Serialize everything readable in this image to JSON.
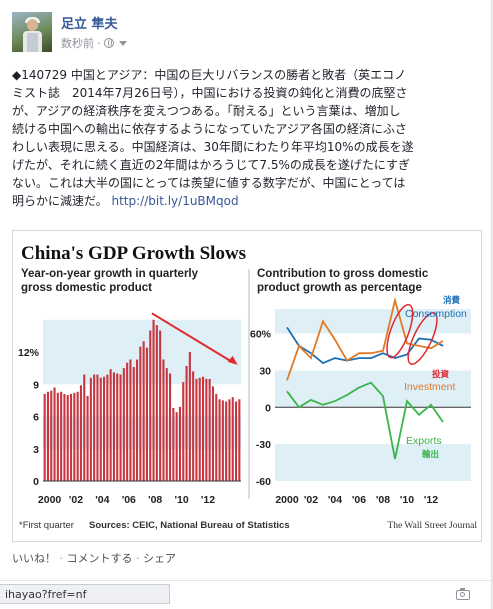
{
  "post": {
    "author": "足立 隼夫",
    "timestamp": "数秒前",
    "separator": "·",
    "privacy_icon": "globe-icon",
    "text_lines": [
      "◆140729 中国とアジア：中国の巨大リバランスの勝者と敗者（英エコノ",
      "ミスト誌　2014年7月26日号），中国における投資の鈍化と消費の底堅さ",
      "が、アジアの経済秩序を変えつつある。「耐える」という言葉は、増加し",
      "続ける中国への輸出に依存するようになっていたアジア各国の経済にふさ",
      "わしい表現に思える。中国経済は、30年間にわたり年平均10%の成長を遂",
      "げたが、それに続く直近の2年間はかろうじて7.5%の成長を遂げたにすぎ",
      "ない。これは大半の国にとっては羨望に値する数字だが、中国にとっては",
      "明らかに減速だ。"
    ],
    "link": "http://bit.ly/1uBMqod",
    "actions": [
      "いいね！",
      "コメントする",
      "シェア"
    ],
    "action_separator": " · "
  },
  "statusbar": {
    "url": "ihayao?fref=nf"
  },
  "chart_data": [
    {
      "type": "bar",
      "title": "China's GDP Growth Slows",
      "subtitle_lines": [
        "Year-on-year growth in quarterly",
        "gross domestic product"
      ],
      "ylim": [
        0,
        16
      ],
      "yticks": [
        "0",
        "3",
        "6",
        "9",
        "12%"
      ],
      "xticks": [
        "2000",
        "'02",
        "'04",
        "'06",
        "'08",
        "'10",
        "'12"
      ],
      "values": [
        8.1,
        8.3,
        8.4,
        8.7,
        8.2,
        8.3,
        8.1,
        8.0,
        8.1,
        8.2,
        8.3,
        8.9,
        9.9,
        7.9,
        9.6,
        9.9,
        9.9,
        9.6,
        9.7,
        9.9,
        10.4,
        10.1,
        10.0,
        9.9,
        10.5,
        11.0,
        11.3,
        10.6,
        11.3,
        12.5,
        13.0,
        12.4,
        14.0,
        15.0,
        14.5,
        14.0,
        11.3,
        10.5,
        10.0,
        6.8,
        6.4,
        6.9,
        9.2,
        10.7,
        12.0,
        10.2,
        9.5,
        9.6,
        9.7,
        9.5,
        9.5,
        8.8,
        8.1,
        7.6,
        7.5,
        7.4,
        7.6,
        7.8,
        7.4,
        7.6
      ]
    },
    {
      "type": "line",
      "subtitle_lines": [
        "Contribution to gross domestic",
        "product growth as percentage"
      ],
      "ylim": [
        -60,
        80
      ],
      "yticks": [
        "60%",
        "30",
        "0",
        "-30",
        "-60"
      ],
      "xticks": [
        "2000",
        "'02",
        "'04",
        "'06",
        "'08",
        "'10",
        "'12"
      ],
      "x": [
        2000,
        2001,
        2002,
        2003,
        2004,
        2005,
        2006,
        2007,
        2008,
        2009,
        2010,
        2011,
        2012,
        2013
      ],
      "series": [
        {
          "name": "Consumption",
          "label_local": "消費",
          "color": "#1f6fb5",
          "values": [
            65,
            50,
            44,
            36,
            40,
            38,
            40,
            40,
            44,
            40,
            43,
            56,
            55,
            50
          ]
        },
        {
          "name": "Investment",
          "label_local": "投資",
          "color": "#e07a26",
          "values": [
            22,
            50,
            40,
            70,
            55,
            38,
            44,
            44,
            46,
            87,
            52,
            50,
            48,
            54
          ]
        },
        {
          "name": "Exports",
          "label_local": "輸出",
          "color": "#39b54a",
          "values": [
            13,
            0,
            6,
            2,
            5,
            10,
            16,
            20,
            9,
            -42,
            5,
            -6,
            2,
            -12
          ]
        }
      ]
    }
  ],
  "chart_footer": {
    "note": "*First quarter",
    "sources": "Sources: CEIC, National Bureau of Statistics",
    "publisher": "The Wall Street Journal"
  },
  "colors": {
    "bar": "#c8363f",
    "band": "#dfeff6",
    "arrow": "#e0282f",
    "link": "#365899"
  }
}
